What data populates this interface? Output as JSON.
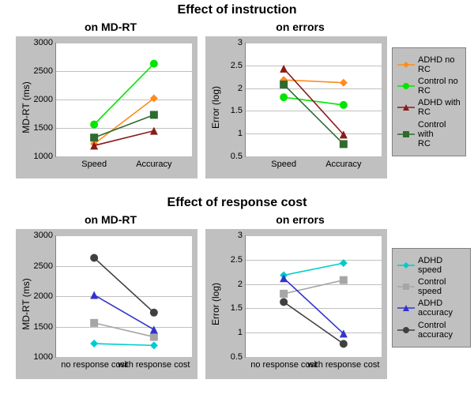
{
  "titles": {
    "top_main": "Effect of instruction",
    "top_left": "on MD-RT",
    "top_right": "on errors",
    "bottom_main": "Effect of response cost",
    "bottom_left": "on MD-RT",
    "bottom_right": "on errors"
  },
  "title_fontsize": 16,
  "subtitle_fontsize": 14,
  "background_color": "#ffffff",
  "panel_bg": "#c0c0c0",
  "grid_color": "#c0c0c0",
  "axis_color": "#808080",
  "tick_fontsize": 11,
  "axis_label_fontsize": 12,
  "legend_top": {
    "items": [
      {
        "label": "ADHD no RC",
        "color": "#ff8c1a",
        "marker": "diamond"
      },
      {
        "label": "Control no RC",
        "color": "#00e600",
        "marker": "circle"
      },
      {
        "label": "ADHD with RC",
        "color": "#8b1a1a",
        "marker": "triangle"
      },
      {
        "label": "Control with RC",
        "color": "#2f6b2f",
        "marker": "square"
      }
    ]
  },
  "legend_bottom": {
    "items": [
      {
        "label": "ADHD speed",
        "color": "#00cccc",
        "marker": "diamond"
      },
      {
        "label": "Control speed",
        "color": "#a6a6a6",
        "marker": "square"
      },
      {
        "label": "ADHD accuracy",
        "color": "#3333cc",
        "marker": "triangle"
      },
      {
        "label": "Control accuracy",
        "color": "#404040",
        "marker": "circle"
      }
    ]
  },
  "charts": {
    "top_left": {
      "type": "line",
      "ylabel": "MD-RT (ms)",
      "ylim": [
        1000,
        3000
      ],
      "ytick_step": 500,
      "categories": [
        "Speed",
        "Accuracy"
      ],
      "series": [
        {
          "key": "ADHD no RC",
          "values": [
            1220,
            2020
          ]
        },
        {
          "key": "Control no RC",
          "values": [
            1560,
            2630
          ]
        },
        {
          "key": "ADHD with RC",
          "values": [
            1190,
            1450
          ]
        },
        {
          "key": "Control with RC",
          "values": [
            1330,
            1730
          ]
        }
      ]
    },
    "top_right": {
      "type": "line",
      "ylabel": "Error (log)",
      "ylim": [
        0.5,
        3.0
      ],
      "ytick_step": 0.5,
      "categories": [
        "Speed",
        "Accuracy"
      ],
      "series": [
        {
          "key": "ADHD no RC",
          "values": [
            2.18,
            2.12
          ]
        },
        {
          "key": "Control no RC",
          "values": [
            1.8,
            1.63
          ]
        },
        {
          "key": "ADHD with RC",
          "values": [
            2.43,
            0.98
          ]
        },
        {
          "key": "Control with RC",
          "values": [
            2.08,
            0.77
          ]
        }
      ]
    },
    "bottom_left": {
      "type": "line",
      "ylabel": "MD-RT (ms)",
      "ylim": [
        1000,
        3000
      ],
      "ytick_step": 500,
      "categories": [
        "no response cost",
        "with response cost"
      ],
      "series": [
        {
          "key": "ADHD speed",
          "values": [
            1220,
            1190
          ]
        },
        {
          "key": "Control speed",
          "values": [
            1560,
            1330
          ]
        },
        {
          "key": "ADHD accuracy",
          "values": [
            2020,
            1450
          ]
        },
        {
          "key": "Control accuracy",
          "values": [
            2630,
            1730
          ]
        }
      ]
    },
    "bottom_right": {
      "type": "line",
      "ylabel": "Error (log)",
      "ylim": [
        0.5,
        3.0
      ],
      "ytick_step": 0.5,
      "categories": [
        "no response cost",
        "with response cost"
      ],
      "series": [
        {
          "key": "ADHD speed",
          "values": [
            2.18,
            2.43
          ]
        },
        {
          "key": "Control speed",
          "values": [
            1.8,
            2.08
          ]
        },
        {
          "key": "ADHD accuracy",
          "values": [
            2.12,
            0.98
          ]
        },
        {
          "key": "Control accuracy",
          "values": [
            1.63,
            0.77
          ]
        }
      ]
    }
  },
  "line_width": 1.6,
  "marker_size": 5
}
